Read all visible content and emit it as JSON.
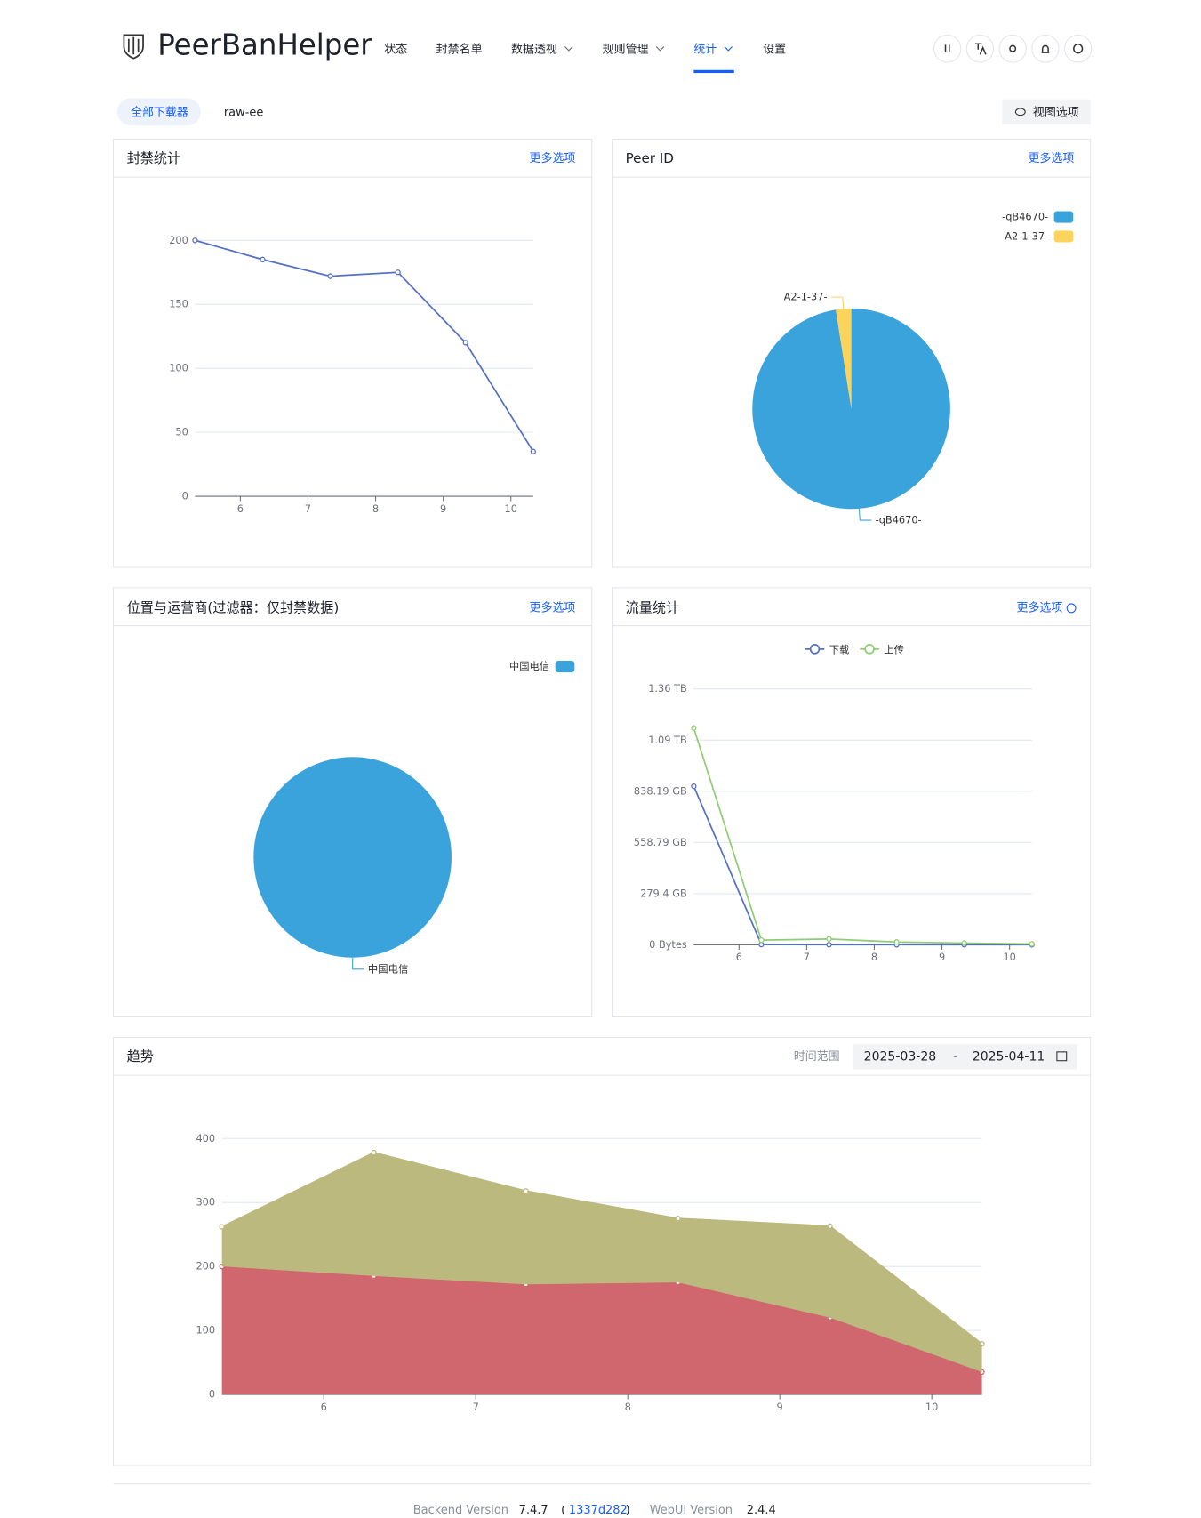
{
  "header": {
    "title": "PeerBanHelper",
    "nav": [
      "状态",
      "封禁名单",
      "数据透视",
      "规则管理",
      "统计",
      "设置"
    ]
  },
  "tabs": [
    "全部下载器",
    "raw-ee"
  ],
  "view_options": "视图选项",
  "chart_data": [
    {
      "type": "line",
      "title": "封禁统计",
      "link": "更多选项",
      "x": [
        5.33,
        6.33,
        7.33,
        8.33,
        9.33,
        10.33
      ],
      "xlim": [
        5.33,
        10.33
      ],
      "xticks": [
        6,
        7,
        8,
        9,
        10
      ],
      "series": [
        {
          "color": "#5470c6",
          "values": [
            200,
            185,
            172,
            175,
            120,
            35
          ]
        }
      ],
      "ylim": [
        0,
        200
      ],
      "yticks": [
        0,
        50,
        100,
        150,
        200
      ],
      "grid": true
    },
    {
      "type": "pie",
      "title": "Peer ID",
      "link": "更多选项",
      "categories": [
        "-qB4670-",
        "A2-1-37-"
      ],
      "values": [
        97.5,
        2.5
      ],
      "colors": [
        "#3ba3db",
        "#fdd45a"
      ],
      "legend": "top-right"
    },
    {
      "type": "pie",
      "title": "位置与运营商(过滤器：仅封禁数据)",
      "link": "更多选项",
      "categories": [
        "中国电信"
      ],
      "values": [
        100
      ],
      "colors": [
        "#3ba3db"
      ],
      "legend": "top-right"
    },
    {
      "type": "line",
      "title": "流量统计",
      "link": "更多选项",
      "x": [
        5.33,
        6.33,
        7.33,
        8.33,
        9.33,
        10.33
      ],
      "xlim": [
        5.33,
        10.33
      ],
      "xticks": [
        6,
        7,
        8,
        9,
        10
      ],
      "series": [
        {
          "name": "下载",
          "color": "#5470c6",
          "values": [
            866,
            2,
            1,
            1,
            1,
            1
          ]
        },
        {
          "name": "上传",
          "color": "#91cc75",
          "values": [
            1184,
            26,
            32,
            16,
            10,
            5
          ]
        }
      ],
      "ylim": [
        0,
        1396.98
      ],
      "yticks": [
        {
          "value": 0,
          "label": "0 Bytes"
        },
        {
          "value": 279.4,
          "label": "279.4 GB"
        },
        {
          "value": 558.79,
          "label": "558.79 GB"
        },
        {
          "value": 838.19,
          "label": "838.19 GB"
        },
        {
          "value": 1117.58,
          "label": "1.09 TB"
        },
        {
          "value": 1396.98,
          "label": "1.36 TB"
        }
      ],
      "grid": true,
      "legend": "top"
    },
    {
      "type": "area",
      "stacked": true,
      "title": "趋势",
      "range_label": "时间范围",
      "start": "2025-03-28",
      "sep": "-",
      "end": "2025-04-11",
      "x": [
        5.33,
        6.33,
        7.33,
        8.33,
        9.33,
        10.33
      ],
      "xlim": [
        5.33,
        10.33
      ],
      "xticks": [
        6,
        7,
        8,
        9,
        10
      ],
      "series": [
        {
          "color": "#d0666e",
          "values": [
            200,
            185,
            172,
            175,
            120,
            35
          ]
        },
        {
          "color": "#bcb97f",
          "values": [
            62,
            193,
            146,
            100,
            143,
            44
          ]
        }
      ],
      "ylim": [
        0,
        400
      ],
      "yticks": [
        0,
        100,
        200,
        300,
        400
      ],
      "grid": true
    }
  ],
  "footer": {
    "backend_label": "Backend Version",
    "backend": "7.4.7",
    "open": "(",
    "commit": "1337d282",
    "close": ")",
    "webui_label": "WebUI Version",
    "webui": "2.4.4"
  }
}
